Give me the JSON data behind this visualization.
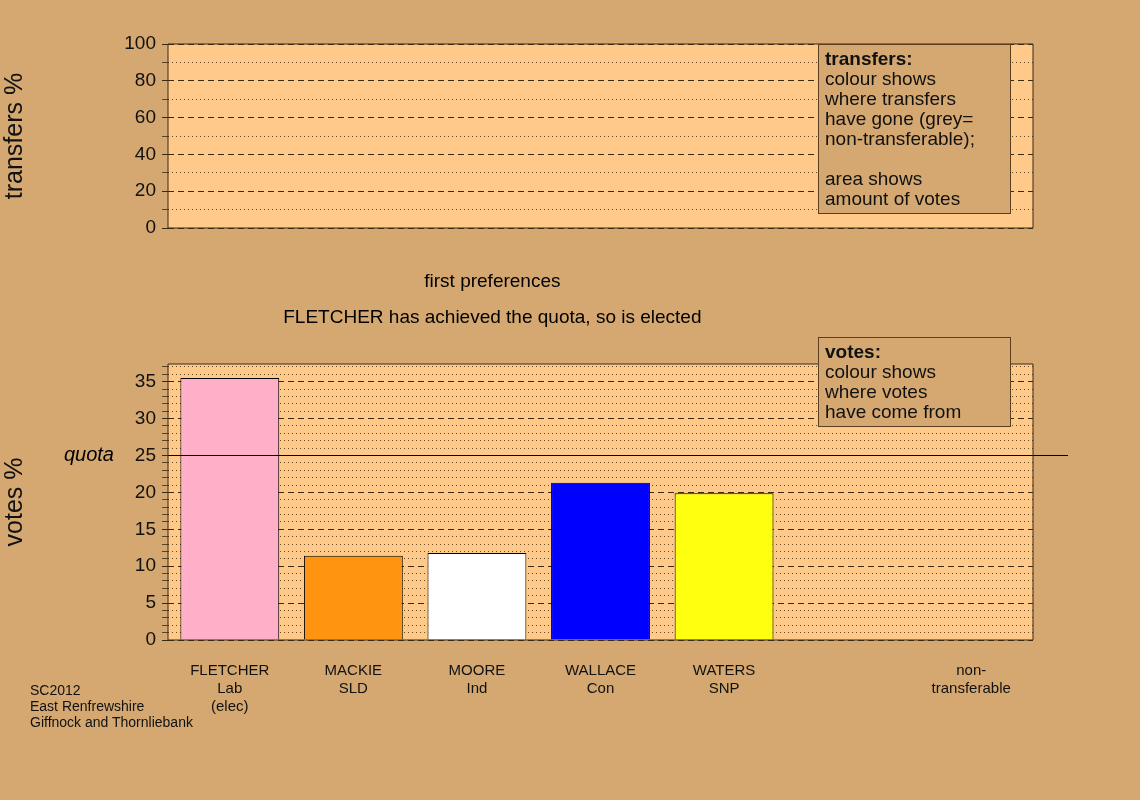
{
  "chart_data": [
    {
      "type": "bar",
      "ylabel": "transfers %",
      "categories": [
        null,
        null,
        null,
        null,
        null,
        null,
        null
      ],
      "values": [
        null,
        null,
        null,
        null,
        null,
        null,
        null
      ],
      "ylim": [
        0,
        100
      ],
      "yticks": [
        0,
        {
          "value": 10,
          "label": null
        },
        20,
        {
          "value": 30,
          "label": null
        },
        40,
        {
          "value": 50,
          "label": null
        },
        60,
        {
          "value": 70,
          "label": null
        },
        80,
        {
          "value": 90,
          "label": null
        },
        100
      ],
      "grid": "y",
      "legend": false,
      "tick_labels": "y",
      "annotations": [
        "transfers:\ncolour shows\nwhere transfers\nhave gone (grey=\nnon-transferable);\n\narea shows\namount of votes"
      ]
    },
    {
      "type": "bar",
      "title": "first preferences",
      "subtitle": "FLETCHER has achieved the quota, so is elected",
      "ylabel": "votes %",
      "categories": [
        "FLETCHER\nLab\n(elec)",
        "MACKIE\nSLD",
        "MOORE\nInd",
        "WALLACE\nCon",
        "WATERS\nSNP",
        null,
        "non-\ntransferable"
      ],
      "values": [
        35.5,
        11.4,
        11.8,
        21.3,
        19.9,
        null,
        0
      ],
      "colors": [
        "#ffb0c8",
        "#ff9410",
        "#ffffff",
        "#0000ff",
        "#ffff10",
        "#a0a0a0",
        "#a0a0a0"
      ],
      "ylim": [
        0,
        37.4
      ],
      "yticks": [
        0,
        {
          "value": 1,
          "label": null
        },
        {
          "value": 2,
          "label": null
        },
        {
          "value": 3,
          "label": null
        },
        {
          "value": 4,
          "label": null
        },
        5,
        {
          "value": 6,
          "label": null
        },
        {
          "value": 7,
          "label": null
        },
        {
          "value": 8,
          "label": null
        },
        {
          "value": 9,
          "label": null
        },
        10,
        {
          "value": 11,
          "label": null
        },
        {
          "value": 12,
          "label": null
        },
        {
          "value": 13,
          "label": null
        },
        {
          "value": 14,
          "label": null
        },
        15,
        {
          "value": 16,
          "label": null
        },
        {
          "value": 17,
          "label": null
        },
        {
          "value": 18,
          "label": null
        },
        {
          "value": 19,
          "label": null
        },
        20,
        {
          "value": 21,
          "label": null
        },
        {
          "value": 22,
          "label": null
        },
        {
          "value": 23,
          "label": null
        },
        {
          "value": 24,
          "label": null
        },
        25,
        {
          "value": 26,
          "label": null
        },
        {
          "value": 27,
          "label": null
        },
        {
          "value": 28,
          "label": null
        },
        {
          "value": 29,
          "label": null
        },
        30,
        {
          "value": 31,
          "label": null
        },
        {
          "value": 32,
          "label": null
        },
        {
          "value": 33,
          "label": null
        },
        {
          "value": 34,
          "label": null
        },
        35,
        {
          "value": 36,
          "label": null
        },
        {
          "value": 37,
          "label": null
        }
      ],
      "ref_lines": [
        {
          "axis": "y",
          "value": 25,
          "label": "quota",
          "color": "#000000"
        }
      ],
      "grid": "y",
      "legend": false,
      "annotations": [
        "votes:\ncolour shows\nwhere votes\nhave come from",
        "SC2012\nEast Renfrewshire\nGiffnock and Thornliebank"
      ]
    }
  ]
}
